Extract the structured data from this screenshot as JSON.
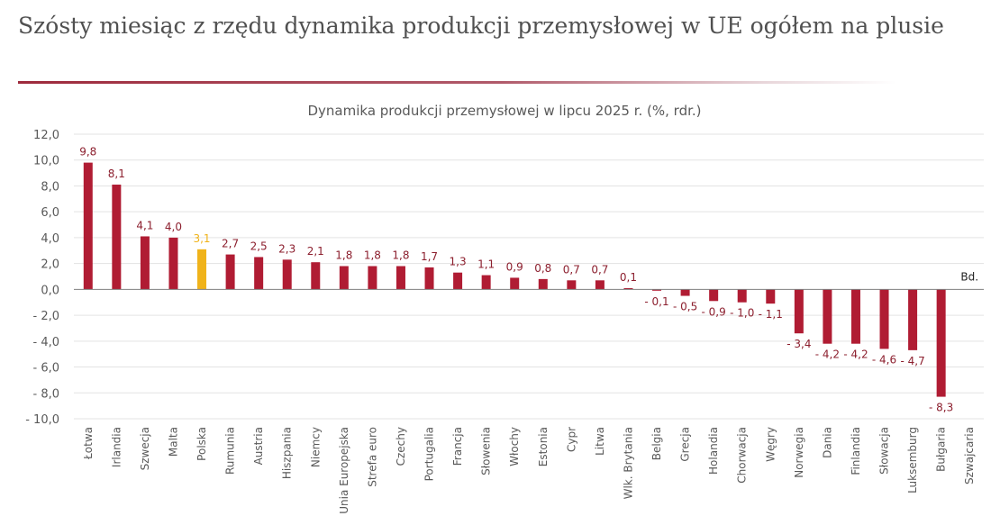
{
  "header": {
    "title": "Szósty miesiąc z rzędu dynamika produkcji przemysłowej w UE ogółem na plusie"
  },
  "colors": {
    "bar": "#b01c33",
    "highlight": "#f0b31a",
    "label": "#8c1f2e",
    "axis_text": "#595959",
    "grid": "#e3e3e3",
    "rule": "#9e2a3c"
  },
  "chart_data": {
    "type": "bar",
    "title": "Dynamika produkcji przemysłowej w lipcu 2025 r. (%, rdr.)",
    "categories": [
      "Łotwa",
      "Irlandia",
      "Szwecja",
      "Malta",
      "Polska",
      "Rumunia",
      "Austria",
      "Hiszpania",
      "Niemcy",
      "Unia Europejska",
      "Strefa euro",
      "Czechy",
      "Portugalia",
      "Francja",
      "Słowenia",
      "Włochy",
      "Estonia",
      "Cypr",
      "Litwa",
      "Wlk. Brytania",
      "Belgia",
      "Grecja",
      "Holandia",
      "Chorwacja",
      "Węgry",
      "Norwegia",
      "Dania",
      "Finlandia",
      "Słowacja",
      "Luksemburg",
      "Bułgaria",
      "Szwajcaria"
    ],
    "values": [
      9.8,
      8.1,
      4.1,
      4.0,
      3.1,
      2.7,
      2.5,
      2.3,
      2.1,
      1.8,
      1.8,
      1.8,
      1.7,
      1.3,
      1.1,
      0.9,
      0.8,
      0.7,
      0.7,
      0.1,
      -0.1,
      -0.5,
      -0.9,
      -1.0,
      -1.1,
      -3.4,
      -4.2,
      -4.2,
      -4.6,
      -4.7,
      -8.3,
      null
    ],
    "value_labels": [
      "9,8",
      "8,1",
      "4,1",
      "4,0",
      "3,1",
      "2,7",
      "2,5",
      "2,3",
      "2,1",
      "1,8",
      "1,8",
      "1,8",
      "1,7",
      "1,3",
      "1,1",
      "0,9",
      "0,8",
      "0,7",
      "0,7",
      "0,1",
      "- 0,1",
      "- 0,5",
      "- 0,9",
      "- 1,0",
      "- 1,1",
      "- 3,4",
      "- 4,2",
      "- 4,2",
      "- 4,6",
      "- 4,7",
      "- 8,3",
      "Bd."
    ],
    "highlight": "Polska",
    "ylim": [
      -10,
      12
    ],
    "yticks": [
      12,
      10,
      8,
      6,
      4,
      2,
      0,
      -2,
      -4,
      -6,
      -8,
      -10
    ],
    "ytick_labels": [
      "12,0",
      "10,0",
      "8,0",
      "6,0",
      "4,0",
      "2,0",
      "0,0",
      "- 2,0",
      "- 4,0",
      "- 6,0",
      "- 8,0",
      "- 10,0"
    ],
    "grid": true,
    "legend": "none"
  }
}
